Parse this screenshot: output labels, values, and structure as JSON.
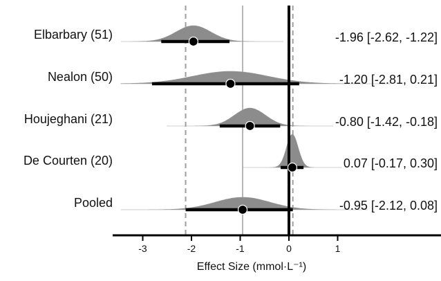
{
  "chart_data": {
    "type": "forest",
    "title": "",
    "xlabel": "Effect Size (mmol·L⁻¹)",
    "xlim": [
      -3.5,
      3.1
    ],
    "xticks": [
      -3,
      -2,
      -1,
      0,
      1
    ],
    "reference_lines": {
      "zero": 0,
      "pooled_mean": -0.95,
      "pooled_ci_lower": -2.12,
      "pooled_ci_upper": 0.08
    },
    "studies": [
      {
        "label": "Elbarbary (51)",
        "estimate": -1.96,
        "lower": -2.62,
        "upper": -1.22,
        "text": "-1.96 [-2.62, -1.22]"
      },
      {
        "label": "Nealon (50)",
        "estimate": -1.2,
        "lower": -2.81,
        "upper": 0.21,
        "text": "-1.20 [-2.81, 0.21]"
      },
      {
        "label": "Houjeghani (21)",
        "estimate": -0.8,
        "lower": -1.42,
        "upper": -0.18,
        "text": "-0.80 [-1.42, -0.18]"
      },
      {
        "label": "De Courten (20)",
        "estimate": 0.07,
        "lower": -0.17,
        "upper": 0.3,
        "text": "0.07 [-0.17, 0.30]"
      },
      {
        "label": "Pooled",
        "estimate": -0.95,
        "lower": -2.12,
        "upper": 0.08,
        "text": "-0.95 [-2.12, 0.08]"
      }
    ],
    "colors": {
      "density": "#8c8c8c",
      "axis": "#000000",
      "dashed": "#9e9e9e",
      "mean_line": "#b5b5b5"
    }
  }
}
